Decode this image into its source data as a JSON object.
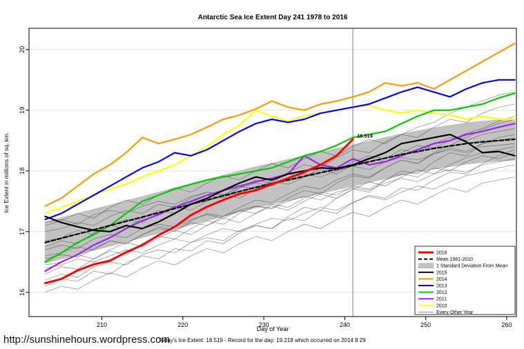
{
  "footer": {
    "url": "http://sunshinehours.wordpress.com",
    "caption": "Today's Ice Extent: 18.519  - Record for the day: 19.218 which occurred on 2014 8 29"
  },
  "vline_day": 241,
  "annotation": {
    "label": "18.519",
    "day": 241.5,
    "value": 18.55,
    "color": "#ff0000"
  },
  "chart_data": {
    "type": "line",
    "title": "Antarctic Sea Ice Extent Day 241 1978 to 2016",
    "xlabel": "Day of Year",
    "ylabel": "Ice Extent in millions of sq. km.",
    "xlim": [
      201,
      261.2
    ],
    "ylim": [
      15.6,
      20.35
    ],
    "xticks": [
      210,
      220,
      230,
      240,
      250,
      260
    ],
    "yticks": [
      16,
      17,
      18,
      19,
      20
    ],
    "grid": "horizontal-light",
    "legend_position": "bottom-right",
    "x": [
      203,
      205,
      207,
      209,
      211,
      213,
      215,
      217,
      219,
      221,
      223,
      225,
      227,
      229,
      231,
      233,
      235,
      237,
      239,
      241,
      243,
      245,
      247,
      249,
      251,
      253,
      255,
      257,
      259,
      261
    ],
    "band": {
      "name": "1 Standard Deviation From Mean",
      "color": "#c2c2c2",
      "upper": [
        17.16,
        17.23,
        17.3,
        17.37,
        17.44,
        17.51,
        17.58,
        17.65,
        17.72,
        17.79,
        17.86,
        17.93,
        18.0,
        18.07,
        18.13,
        18.19,
        18.25,
        18.31,
        18.37,
        18.43,
        18.49,
        18.55,
        18.61,
        18.66,
        18.71,
        18.75,
        18.79,
        18.82,
        18.84,
        18.86
      ],
      "lower": [
        16.48,
        16.55,
        16.62,
        16.69,
        16.76,
        16.83,
        16.9,
        16.97,
        17.04,
        17.11,
        17.18,
        17.25,
        17.32,
        17.39,
        17.45,
        17.51,
        17.57,
        17.63,
        17.69,
        17.75,
        17.81,
        17.87,
        17.93,
        17.98,
        18.03,
        18.07,
        18.11,
        18.14,
        18.16,
        18.18
      ]
    },
    "series": [
      {
        "name": "2016",
        "color": "#ff0000",
        "width": 3,
        "values": [
          16.15,
          16.22,
          16.36,
          16.46,
          16.52,
          16.66,
          16.78,
          16.94,
          17.08,
          17.27,
          17.41,
          17.52,
          17.62,
          17.68,
          17.78,
          17.88,
          17.98,
          18.1,
          18.25,
          18.52,
          null,
          null,
          null,
          null,
          null,
          null,
          null,
          null,
          null,
          null
        ]
      },
      {
        "name": "Mean 1981-2010",
        "color": "#000000",
        "width": 2.2,
        "dash": "6,3",
        "values": [
          16.82,
          16.89,
          16.96,
          17.03,
          17.1,
          17.17,
          17.24,
          17.31,
          17.38,
          17.45,
          17.52,
          17.59,
          17.66,
          17.73,
          17.79,
          17.85,
          17.91,
          17.97,
          18.03,
          18.09,
          18.15,
          18.21,
          18.27,
          18.32,
          18.37,
          18.41,
          18.45,
          18.48,
          18.5,
          18.52
        ]
      },
      {
        "name": "2015",
        "color": "#000000",
        "width": 2.2,
        "values": [
          17.25,
          17.15,
          17.08,
          17.02,
          17.0,
          17.1,
          17.05,
          17.16,
          17.3,
          17.45,
          17.55,
          17.68,
          17.8,
          17.9,
          17.85,
          17.95,
          18.0,
          18.05,
          18.04,
          18.1,
          18.2,
          18.3,
          18.45,
          18.5,
          18.55,
          18.6,
          18.48,
          18.3,
          18.32,
          18.25
        ]
      },
      {
        "name": "2014",
        "color": "#ff9900",
        "width": 2.2,
        "values": [
          17.42,
          17.55,
          17.75,
          17.95,
          18.1,
          18.3,
          18.55,
          18.45,
          18.52,
          18.6,
          18.72,
          18.85,
          18.92,
          19.02,
          19.15,
          19.05,
          19.0,
          19.1,
          19.15,
          19.22,
          19.3,
          19.45,
          19.4,
          19.45,
          19.35,
          19.5,
          19.65,
          19.8,
          19.95,
          20.1
        ]
      },
      {
        "name": "2013",
        "color": "#0000ff",
        "width": 2.2,
        "values": [
          17.2,
          17.3,
          17.45,
          17.6,
          17.75,
          17.9,
          18.05,
          18.15,
          18.3,
          18.25,
          18.35,
          18.5,
          18.65,
          18.78,
          18.85,
          18.8,
          18.85,
          18.95,
          19.0,
          19.05,
          19.1,
          19.2,
          19.3,
          19.38,
          19.3,
          19.22,
          19.35,
          19.45,
          19.5,
          19.5
        ]
      },
      {
        "name": "2012",
        "color": "#00cc00",
        "width": 2.2,
        "values": [
          16.5,
          16.65,
          16.82,
          16.95,
          17.1,
          17.3,
          17.5,
          17.6,
          17.7,
          17.78,
          17.85,
          17.9,
          17.95,
          18.0,
          18.05,
          18.15,
          18.25,
          18.32,
          18.42,
          18.55,
          18.6,
          18.65,
          18.78,
          18.9,
          19.0,
          19.0,
          19.05,
          19.1,
          19.2,
          19.28
        ]
      },
      {
        "name": "2011",
        "color": "#a020f0",
        "width": 2.2,
        "values": [
          16.35,
          16.5,
          16.62,
          16.78,
          16.9,
          17.05,
          17.18,
          17.28,
          17.4,
          17.5,
          17.6,
          17.68,
          17.75,
          17.82,
          17.88,
          17.95,
          18.25,
          18.1,
          18.05,
          18.2,
          18.1,
          18.15,
          18.25,
          18.35,
          18.45,
          18.5,
          18.6,
          18.65,
          18.72,
          18.78
        ]
      },
      {
        "name": "2010",
        "color": "#ffff00",
        "width": 2.2,
        "values": [
          17.3,
          17.4,
          17.5,
          17.6,
          17.7,
          17.78,
          17.9,
          18.0,
          18.1,
          18.25,
          18.4,
          18.6,
          18.75,
          19.0,
          18.9,
          18.82,
          18.9,
          18.95,
          19.0,
          19.05,
          19.08,
          19.0,
          18.95,
          19.0,
          18.95,
          18.92,
          18.85,
          18.9,
          18.85,
          18.85
        ]
      }
    ],
    "other_years": {
      "name": "Every Other Year",
      "color": "#3c3c3c",
      "width": 0.55,
      "lines": [
        [
          16.85,
          16.9,
          17.02,
          16.95,
          17.1,
          17.2,
          17.15,
          17.3,
          17.42,
          17.35,
          17.5,
          17.62,
          17.55,
          17.7,
          17.82,
          17.78,
          17.9,
          18.02,
          17.95,
          18.1,
          18.22,
          18.15,
          18.3,
          18.42,
          18.38,
          18.5,
          18.62,
          18.7,
          18.82,
          18.9
        ],
        [
          16.0,
          16.1,
          16.05,
          16.2,
          16.32,
          16.25,
          16.4,
          16.52,
          16.45,
          16.6,
          16.72,
          16.65,
          16.8,
          16.92,
          16.85,
          17.0,
          17.12,
          17.05,
          17.2,
          17.32,
          17.25,
          17.4,
          17.52,
          17.45,
          17.6,
          17.72,
          17.65,
          17.8,
          17.85,
          17.9
        ],
        [
          16.45,
          16.5,
          16.62,
          16.55,
          16.7,
          16.82,
          16.75,
          16.9,
          17.02,
          16.95,
          17.1,
          17.22,
          17.15,
          17.3,
          17.42,
          17.35,
          17.5,
          17.62,
          17.55,
          17.7,
          17.82,
          17.75,
          17.9,
          18.02,
          17.95,
          18.1,
          18.22,
          18.3,
          18.35,
          18.4
        ],
        [
          17.1,
          17.18,
          17.3,
          17.22,
          17.4,
          17.52,
          17.45,
          17.6,
          17.72,
          17.65,
          17.8,
          17.92,
          17.85,
          18.0,
          18.12,
          18.05,
          18.2,
          18.32,
          18.25,
          18.4,
          18.52,
          18.45,
          18.6,
          18.72,
          18.8,
          18.95,
          19.05,
          19.15,
          19.25,
          19.3
        ],
        [
          16.2,
          16.3,
          16.25,
          16.42,
          16.5,
          16.45,
          16.62,
          16.7,
          16.65,
          16.82,
          16.9,
          16.85,
          17.02,
          17.1,
          17.05,
          17.25,
          17.4,
          17.35,
          17.55,
          17.7,
          17.65,
          17.85,
          18.0,
          17.95,
          18.15,
          18.3,
          18.25,
          18.45,
          18.55,
          18.6
        ],
        [
          16.7,
          16.78,
          16.72,
          16.88,
          16.95,
          16.9,
          17.05,
          17.12,
          17.08,
          17.2,
          17.28,
          17.22,
          17.35,
          17.42,
          17.38,
          17.5,
          17.58,
          17.52,
          17.65,
          17.72,
          17.68,
          17.8,
          17.88,
          17.82,
          17.95,
          18.02,
          17.98,
          18.1,
          18.15,
          18.2
        ],
        [
          16.3,
          16.42,
          16.38,
          16.55,
          16.68,
          16.62,
          16.8,
          16.92,
          16.88,
          17.05,
          17.18,
          17.12,
          17.3,
          17.42,
          17.38,
          17.55,
          17.68,
          17.62,
          17.8,
          17.92,
          17.88,
          18.05,
          18.18,
          18.12,
          18.3,
          18.42,
          18.55,
          18.68,
          18.78,
          18.85
        ],
        [
          16.6,
          16.65,
          16.75,
          16.7,
          16.85,
          16.8,
          16.95,
          17.05,
          17.0,
          17.15,
          17.1,
          17.25,
          17.35,
          17.3,
          17.45,
          17.4,
          17.55,
          17.65,
          17.6,
          17.75,
          17.7,
          17.85,
          17.95,
          17.9,
          18.05,
          18.0,
          18.15,
          18.25,
          18.2,
          18.3
        ],
        [
          17.0,
          17.05,
          17.15,
          17.1,
          17.25,
          17.35,
          17.3,
          17.45,
          17.4,
          17.55,
          17.65,
          17.6,
          17.75,
          17.7,
          17.85,
          17.95,
          17.9,
          18.05,
          18.0,
          18.15,
          18.25,
          18.2,
          18.35,
          18.3,
          18.45,
          18.55,
          18.5,
          18.6,
          18.65,
          18.7
        ],
        [
          16.1,
          16.22,
          16.18,
          16.35,
          16.3,
          16.48,
          16.6,
          16.55,
          16.72,
          16.68,
          16.85,
          16.8,
          16.98,
          17.1,
          17.05,
          17.22,
          17.18,
          17.35,
          17.3,
          17.48,
          17.6,
          17.55,
          17.72,
          17.68,
          17.85,
          17.98,
          17.95,
          18.12,
          18.25,
          18.35
        ],
        [
          16.75,
          16.85,
          16.8,
          16.98,
          17.1,
          17.05,
          17.22,
          17.35,
          17.3,
          17.48,
          17.6,
          17.55,
          17.72,
          17.85,
          17.8,
          17.98,
          18.1,
          18.05,
          18.22,
          18.35,
          18.3,
          18.48,
          18.6,
          18.55,
          18.72,
          18.85,
          18.8,
          18.95,
          19.05,
          19.1
        ],
        [
          16.4,
          16.45,
          16.55,
          16.5,
          16.6,
          16.7,
          16.65,
          16.78,
          16.88,
          16.82,
          16.95,
          17.05,
          17.0,
          17.12,
          17.22,
          17.18,
          17.3,
          17.4,
          17.35,
          17.48,
          17.58,
          17.52,
          17.65,
          17.75,
          17.7,
          17.82,
          17.92,
          17.98,
          18.05,
          18.1
        ],
        [
          16.55,
          16.62,
          16.58,
          16.72,
          16.85,
          16.8,
          16.95,
          17.08,
          17.02,
          17.18,
          17.3,
          17.25,
          17.4,
          17.52,
          17.48,
          17.62,
          17.75,
          17.7,
          17.85,
          17.95,
          17.9,
          18.05,
          18.18,
          18.12,
          18.28,
          18.38,
          18.32,
          18.45,
          18.5,
          18.55
        ],
        [
          17.15,
          17.2,
          17.12,
          17.28,
          17.35,
          17.3,
          17.42,
          17.5,
          17.45,
          17.58,
          17.65,
          17.6,
          17.72,
          17.8,
          17.75,
          17.88,
          17.95,
          17.9,
          18.0,
          18.08,
          18.02,
          18.15,
          18.22,
          18.18,
          18.28,
          18.35,
          18.3,
          18.4,
          18.42,
          18.45
        ]
      ]
    },
    "legend": [
      {
        "label": "2016",
        "swatch": "line",
        "color": "#ff0000",
        "width": 3
      },
      {
        "label": "Mean 1981-2010",
        "swatch": "line",
        "color": "#000000",
        "width": 2,
        "dash": "5,3"
      },
      {
        "label": "1 Standard Deviation From Mean",
        "swatch": "box",
        "color": "#c2c2c2"
      },
      {
        "label": "2015",
        "swatch": "line",
        "color": "#000000",
        "width": 2
      },
      {
        "label": "2014",
        "swatch": "line",
        "color": "#ff9900",
        "width": 2
      },
      {
        "label": "2013",
        "swatch": "line",
        "color": "#0000ff",
        "width": 2
      },
      {
        "label": "2012",
        "swatch": "line",
        "color": "#00cc00",
        "width": 2
      },
      {
        "label": "2011",
        "swatch": "line",
        "color": "#a020f0",
        "width": 2
      },
      {
        "label": "2010",
        "swatch": "line",
        "color": "#ffff00",
        "width": 2
      },
      {
        "label": "Every Other Year",
        "swatch": "line",
        "color": "#3c3c3c",
        "width": 0.6
      }
    ]
  }
}
